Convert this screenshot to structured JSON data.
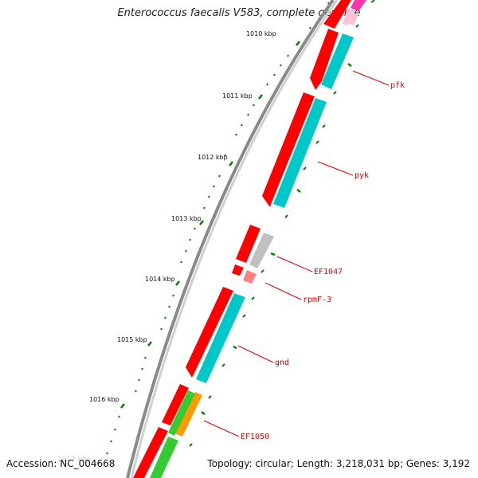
{
  "title": "Enterococcus faecalis V583, complete genome",
  "footer": {
    "accession": "Accession: NC_004668",
    "info": "Topology: circular; Length: 3,218,031 bp; Genes: 3,192",
    "ghost_label": "1017 kbp"
  },
  "colors": {
    "backbone_dark": "#8a8a8a",
    "backbone_light": "#c8c8c8",
    "forward_gene": "#ff0000",
    "reverse_gene": "#00c8c8",
    "hypothetical_gene": "#c0c0c0",
    "rna_gene": "#ff8080",
    "green_gene": "#33cc33",
    "orange_gene": "#ff9900",
    "magenta_gene": "#ff33aa",
    "pink_gene": "#ffc0d8",
    "tick": "#008000",
    "label": "#e00000"
  },
  "kbp_labels": [
    "1010 kbp",
    "1011 kbp",
    "1012 kbp",
    "1013 kbp",
    "1014 kbp",
    "1015 kbp",
    "1016 kbp"
  ],
  "gene_labels": [
    "pfk",
    "pyk",
    "EF1047",
    "rpmF-3",
    "gnd",
    "EF1050"
  ]
}
